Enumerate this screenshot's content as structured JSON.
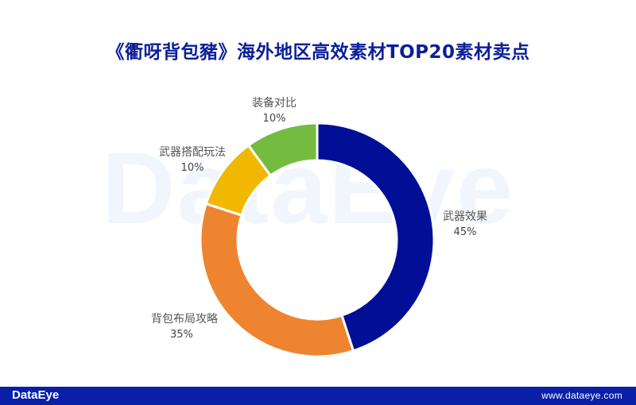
{
  "title": "《衢呀背包豬》海外地区高效素材TOP20素材卖点",
  "watermark": "DataEye",
  "footer": {
    "logo": "DataEye",
    "url": "www.dataeye.com"
  },
  "colors": {
    "title": "#0b1f99",
    "footer_bg": "#0a1fa8",
    "slices": [
      "#000f96",
      "#ee8430",
      "#f0b800",
      "#74bc40"
    ]
  },
  "chart_data": {
    "type": "pie",
    "variant": "donut",
    "title": "《衢呀背包豬》海外地区高效素材TOP20素材卖点",
    "categories": [
      "武器效果",
      "背包布局攻略",
      "武器搭配玩法",
      "装备对比"
    ],
    "values": [
      45,
      35,
      10,
      10
    ],
    "unit": "%",
    "start_angle": "12 o'clock, clockwise",
    "labels": [
      {
        "name": "武器效果",
        "pct": "45%"
      },
      {
        "name": "背包布局攻略",
        "pct": "35%"
      },
      {
        "name": "武器搭配玩法",
        "pct": "10%"
      },
      {
        "name": "装备对比",
        "pct": "10%"
      }
    ],
    "legend": "none (outside data labels)"
  }
}
